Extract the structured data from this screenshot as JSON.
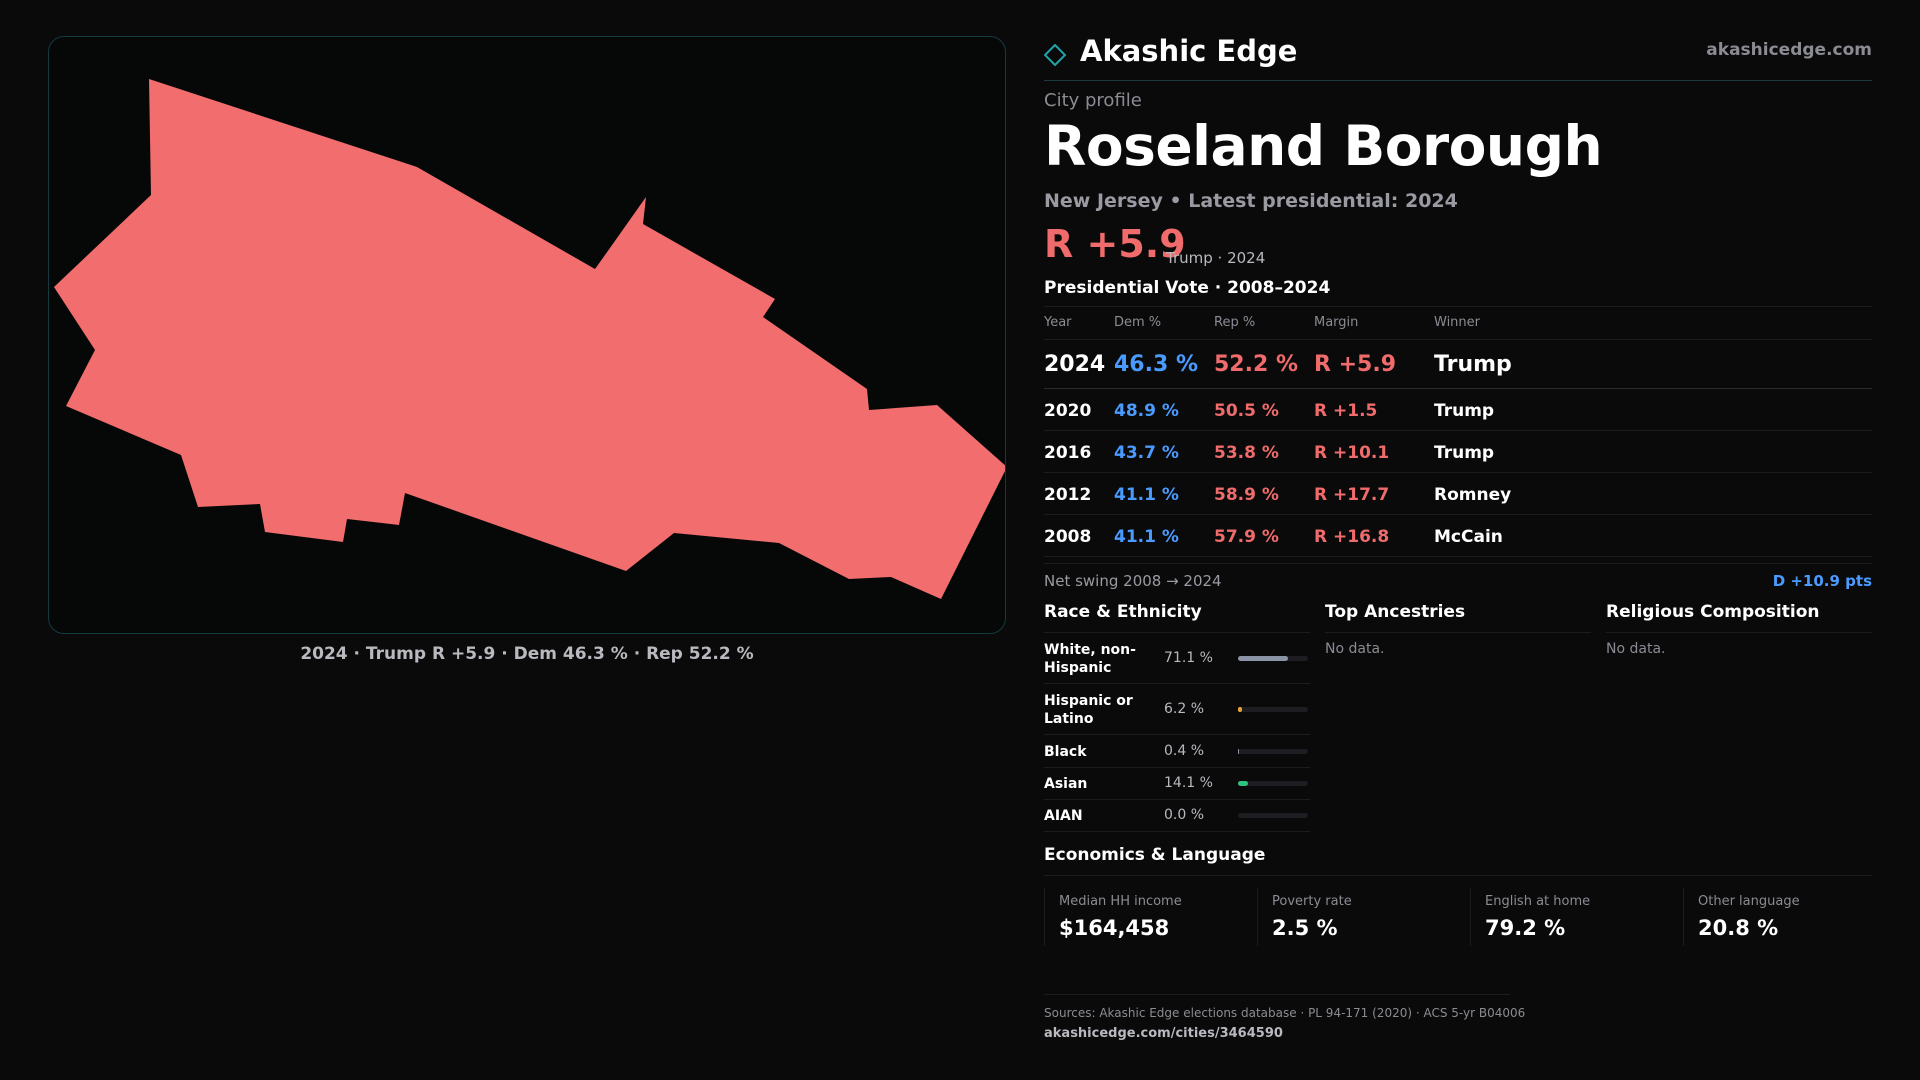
{
  "brand": {
    "name": "Akashic Edge",
    "url": "akashicedge.com",
    "logo_icon": "diamond-icon",
    "accent": "#1fa5a8"
  },
  "map": {
    "fill_color": "#f26d6d",
    "caption": "2024 · Trump R +5.9 · Dem 46.3 % · Rep 52.2 %"
  },
  "profile": {
    "kicker": "City profile",
    "title": "Roseland Borough",
    "subtitle": "New Jersey • Latest presidential: 2024",
    "headline_margin": "R +5.9",
    "headline_note": "Trump · 2024"
  },
  "vote": {
    "section_title": "Presidential Vote · 2008–2024",
    "headers": {
      "year": "Year",
      "dem": "Dem %",
      "rep": "Rep %",
      "margin": "Margin",
      "winner": "Winner"
    },
    "rows": [
      {
        "year": "2024",
        "dem": "46.3 %",
        "rep": "52.2 %",
        "margin": "R +5.9",
        "winner": "Trump"
      },
      {
        "year": "2020",
        "dem": "48.9 %",
        "rep": "50.5 %",
        "margin": "R +1.5",
        "winner": "Trump"
      },
      {
        "year": "2016",
        "dem": "43.7 %",
        "rep": "53.8 %",
        "margin": "R +10.1",
        "winner": "Trump"
      },
      {
        "year": "2012",
        "dem": "41.1 %",
        "rep": "58.9 %",
        "margin": "R +17.7",
        "winner": "Romney"
      },
      {
        "year": "2008",
        "dem": "41.1 %",
        "rep": "57.9 %",
        "margin": "R +16.8",
        "winner": "McCain"
      }
    ],
    "swing_label": "Net swing 2008 → 2024",
    "swing_value": "D +10.9 pts",
    "dem_color": "#4a9bff",
    "rep_color": "#f06b6b"
  },
  "race": {
    "title": "Race & Ethnicity",
    "rows": [
      {
        "name": "White, non-Hispanic",
        "pct": "71.1 %",
        "value": 71.1,
        "color": "#8a94a6"
      },
      {
        "name": "Hispanic or Latino",
        "pct": "6.2 %",
        "value": 6.2,
        "color": "#e8a33a"
      },
      {
        "name": "Black",
        "pct": "0.4 %",
        "value": 0.4,
        "color": "#8a94a6"
      },
      {
        "name": "Asian",
        "pct": "14.1 %",
        "value": 14.1,
        "color": "#2ec27e"
      },
      {
        "name": "AIAN",
        "pct": "0.0 %",
        "value": 0.0,
        "color": "#8a94a6"
      }
    ]
  },
  "ancestries": {
    "title": "Top Ancestries",
    "empty": "No data."
  },
  "religion": {
    "title": "Religious Composition",
    "empty": "No data."
  },
  "economics": {
    "title": "Economics & Language",
    "cells": [
      {
        "label": "Median HH income",
        "value": "$164,458"
      },
      {
        "label": "Poverty rate",
        "value": "2.5 %"
      },
      {
        "label": "English at home",
        "value": "79.2 %"
      },
      {
        "label": "Other language",
        "value": "20.8 %"
      }
    ]
  },
  "sources": {
    "text": "Sources: Akashic Edge elections database · PL 94-171 (2020) · ACS 5-yr B04006",
    "url": "akashicedge.com/cities/3464590"
  }
}
